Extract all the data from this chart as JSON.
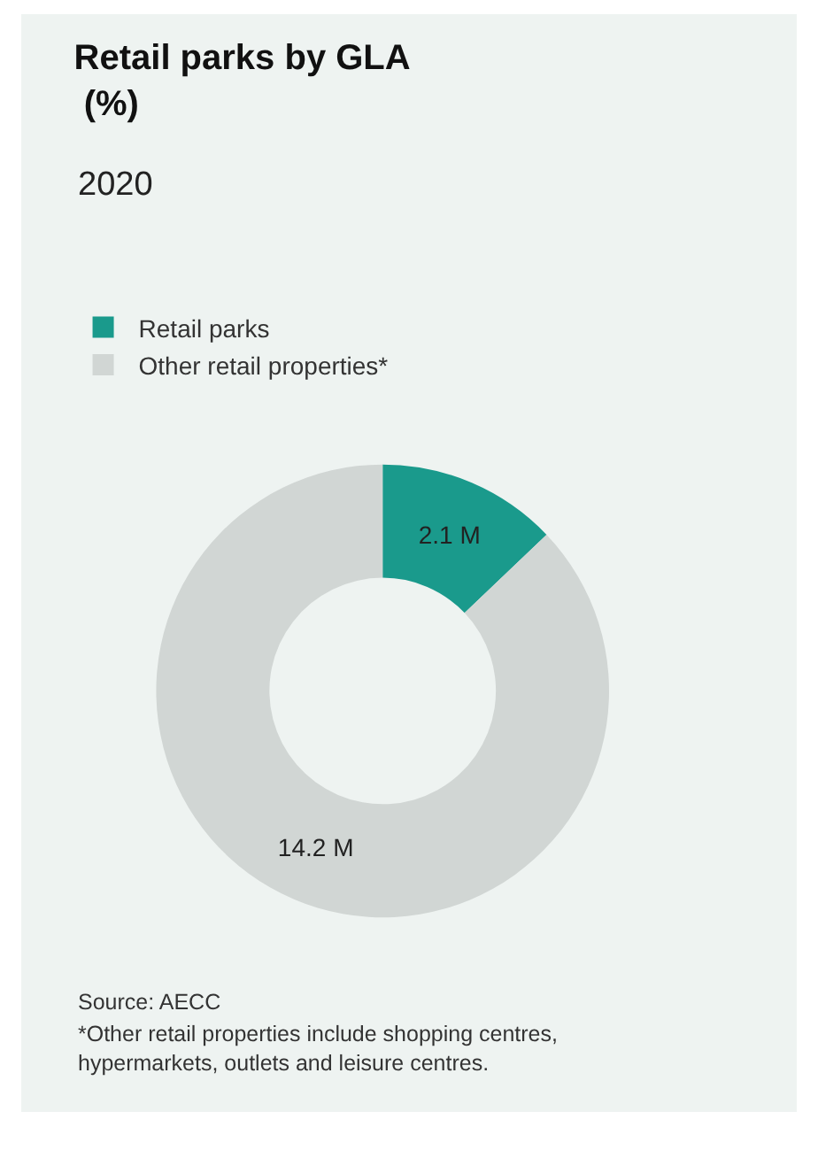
{
  "chart_data": {
    "type": "donut",
    "title": "Retail parks by GLA\n (%)",
    "subtitle": "2020",
    "categories": [
      "Retail parks",
      "Other retail properties*"
    ],
    "values": [
      2.1,
      14.2
    ],
    "value_labels": [
      "2.1 M",
      "14.2 M"
    ],
    "colors": [
      "#1a9a8c",
      "#d1d6d4"
    ],
    "legend": "top left",
    "annotations": [
      "Source: AECC",
      "*Other retail properties include shopping centres,\nhypermarkets, outlets and leisure centres."
    ]
  }
}
